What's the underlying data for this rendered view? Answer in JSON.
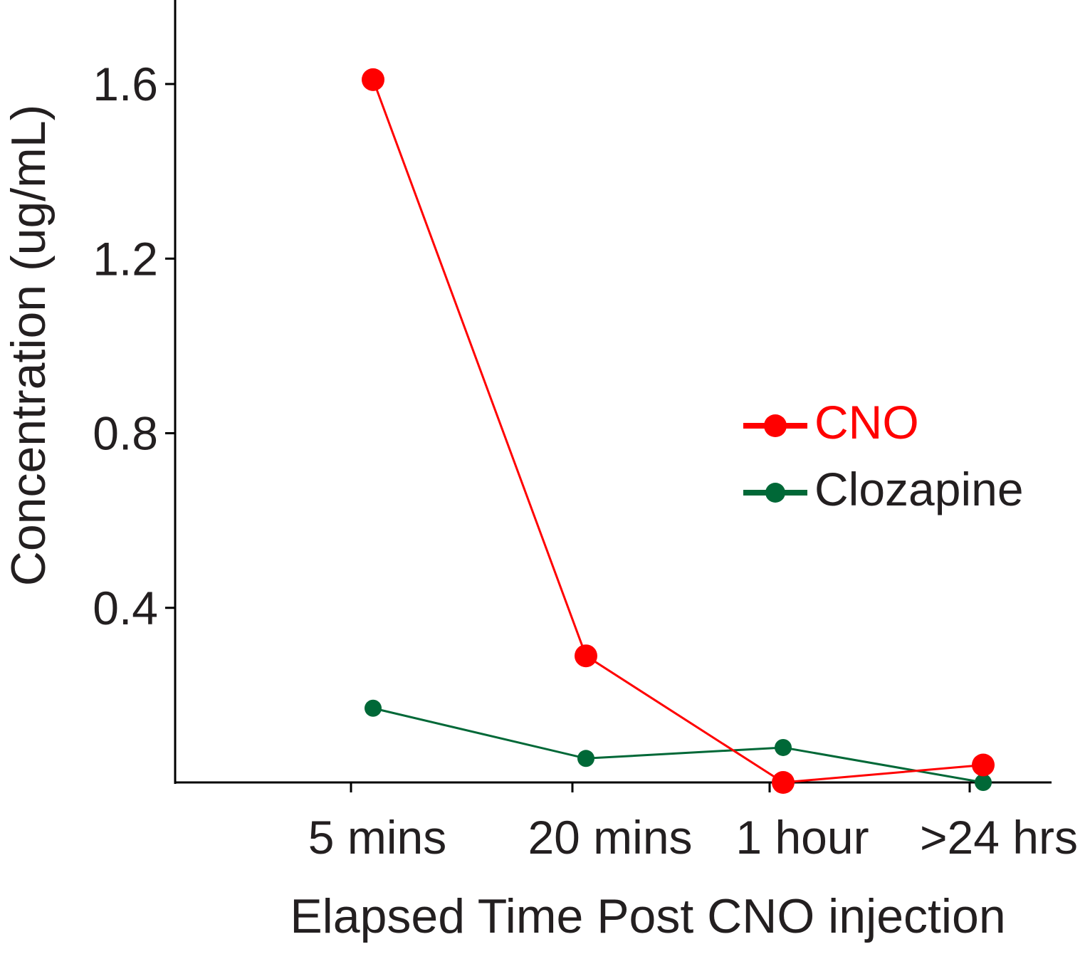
{
  "chart_data": {
    "type": "line",
    "title": "",
    "xlabel": "Elapsed Time Post CNO injection",
    "ylabel": "Concentration (ug/mL)",
    "categories": [
      "5 mins",
      "20 mins",
      "1 hour",
      ">24 hrs"
    ],
    "ylim": [
      0.0,
      1.8
    ],
    "yticks": [
      0.4,
      0.8,
      1.2,
      1.6
    ],
    "ytick_labels": [
      "0.4",
      "0.8",
      "1.2",
      "1.6"
    ],
    "grid": false,
    "legend_position": "center-right",
    "series": [
      {
        "name": "CNO",
        "color": "#ff0000",
        "values": [
          1.61,
          0.29,
          0.0,
          0.04
        ]
      },
      {
        "name": "Clozapine",
        "color": "#006837",
        "values": [
          0.17,
          0.055,
          0.08,
          0.0
        ]
      }
    ],
    "axis_color": "#000000",
    "text_color": "#231f20"
  }
}
